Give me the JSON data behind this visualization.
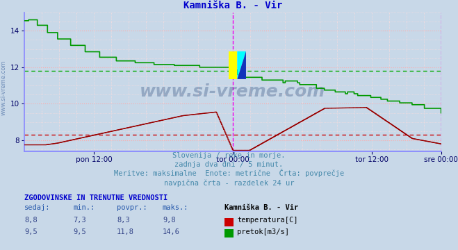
{
  "title": "Kamniška B. - Vir",
  "title_color": "#0000cc",
  "bg_color": "#c8d8e8",
  "plot_bg_color": "#c8d8e8",
  "grid_color_major": "#ffaaaa",
  "grid_color_minor": "#ffdddd",
  "vgrid_color": "#ffdddd",
  "axis_color": "#5555aa",
  "tick_label_color": "#000066",
  "ylim": [
    7.4,
    15.0
  ],
  "yticks": [
    8,
    10,
    12,
    14
  ],
  "xlabel_ticks": [
    "pon 12:00",
    "tor 00:00",
    "tor 12:00",
    "sre 00:00"
  ],
  "xlabel_tick_positions": [
    0.1667,
    0.5,
    0.8333,
    1.0
  ],
  "vline_color": "#ee00ee",
  "hline_temp_avg": 8.3,
  "hline_flow_avg": 11.8,
  "hline_color_temp": "#cc0000",
  "hline_color_flow": "#00aa00",
  "temp_color": "#990000",
  "flow_color": "#009900",
  "bottom_line_color": "#8888ff",
  "left_spine_color": "#8888ff",
  "watermark": "www.si-vreme.com",
  "watermark_color": "#1a3a6e",
  "subtitle_color": "#4488aa",
  "table_header_color": "#0000cc",
  "table_label_color": "#2255aa",
  "table_value_color": "#334488",
  "legend_header": "Kamniška B. - Vir"
}
